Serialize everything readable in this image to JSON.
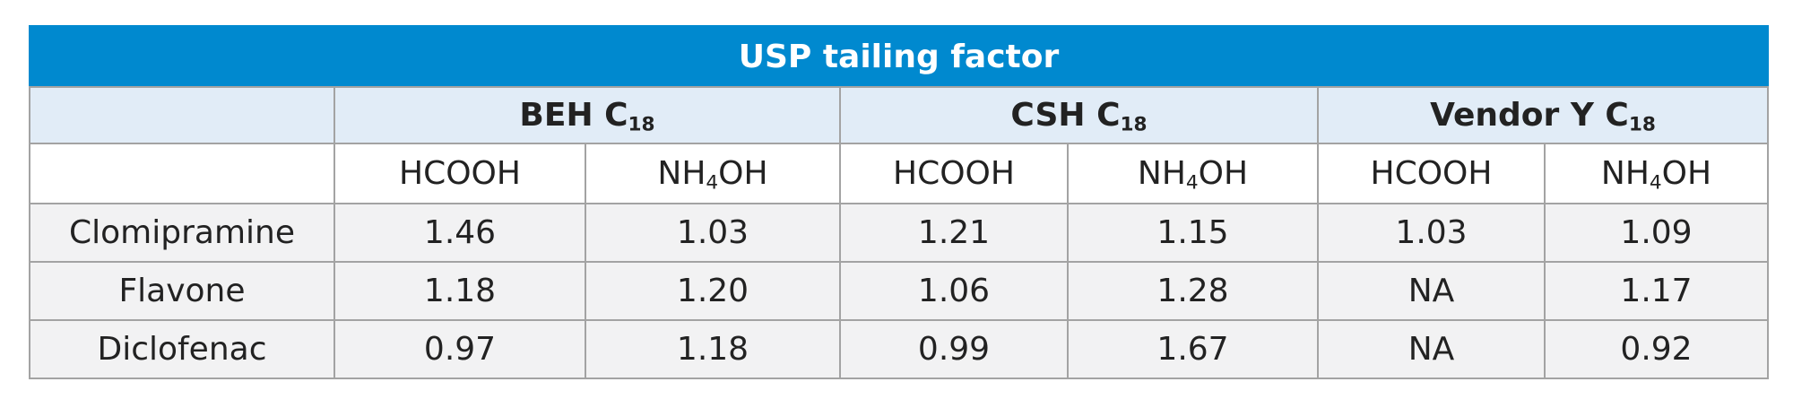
{
  "table": {
    "title": "USP tailing factor",
    "groups": [
      [
        "BEH C",
        "18"
      ],
      [
        "CSH C",
        "18"
      ],
      [
        "Vendor Y C",
        "18"
      ]
    ],
    "subheaders": [
      [
        "HCOOH"
      ],
      [
        "NH",
        "4",
        "OH"
      ],
      [
        "HCOOH"
      ],
      [
        "NH",
        "4",
        "OH"
      ],
      [
        "HCOOH"
      ],
      [
        "NH",
        "4",
        "OH"
      ]
    ],
    "rows": [
      [
        "Clomipramine",
        "1.46",
        "1.03",
        "1.21",
        "1.15",
        "1.03",
        "1.09"
      ],
      [
        "Flavone",
        "1.18",
        "1.20",
        "1.06",
        "1.28",
        "NA",
        "1.17"
      ],
      [
        "Diclofenac",
        "0.97",
        "1.18",
        "0.99",
        "1.67",
        "NA",
        "0.92"
      ]
    ]
  }
}
